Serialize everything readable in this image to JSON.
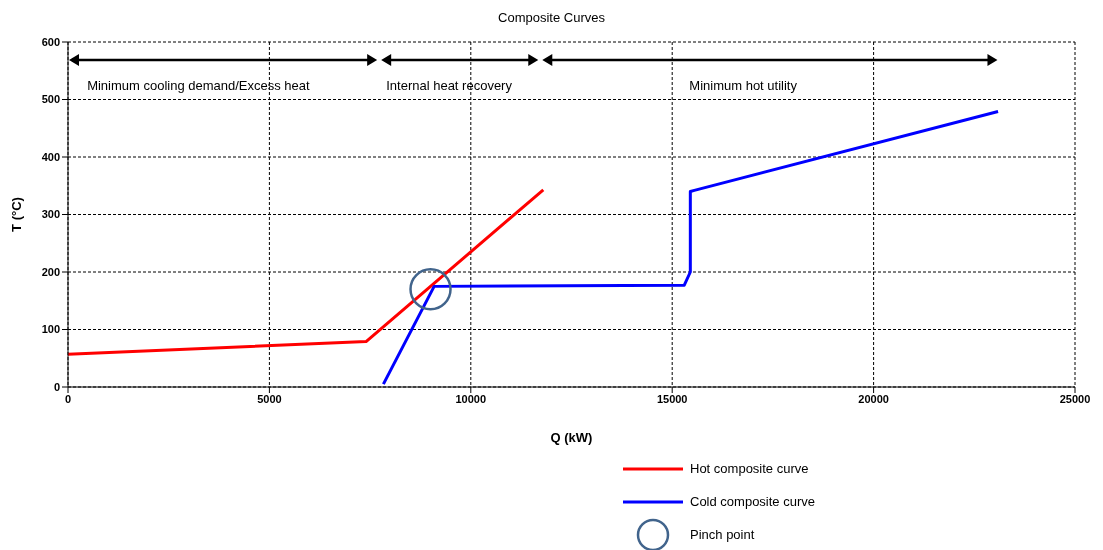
{
  "chart_data": {
    "type": "line",
    "title": "Composite Curves",
    "xlabel": "Q (kW)",
    "ylabel": "T (°C)",
    "xlim": [
      0,
      25000
    ],
    "xticks": [
      0,
      5000,
      10000,
      15000,
      20000,
      25000
    ],
    "ylim": [
      0,
      600
    ],
    "yticks": [
      0,
      100,
      200,
      300,
      400,
      500,
      600
    ],
    "grid": true,
    "legend": "bottom",
    "line_style": "solid",
    "marker": "none",
    "series": [
      {
        "name": "Hot composite curve",
        "color": "#ff0000",
        "x": [
          0,
          7400,
          11800
        ],
        "values": [
          57,
          79,
          343
        ]
      },
      {
        "name": "Cold composite curve",
        "color": "#0000ff",
        "x": [
          7830,
          9090,
          15300,
          15450,
          15450,
          15550,
          23090
        ],
        "values": [
          5,
          175,
          177,
          200,
          340,
          342,
          479
        ]
      },
      {
        "name": "Pinch point",
        "type": "scatter",
        "marker": "circle",
        "color": "#41648c",
        "x": [
          9000
        ],
        "values": [
          170
        ]
      }
    ],
    "annotations": [
      "Minimum  cooling demand/Excess heat",
      "Internal heat recovery",
      "Minimum  hot utility"
    ]
  }
}
